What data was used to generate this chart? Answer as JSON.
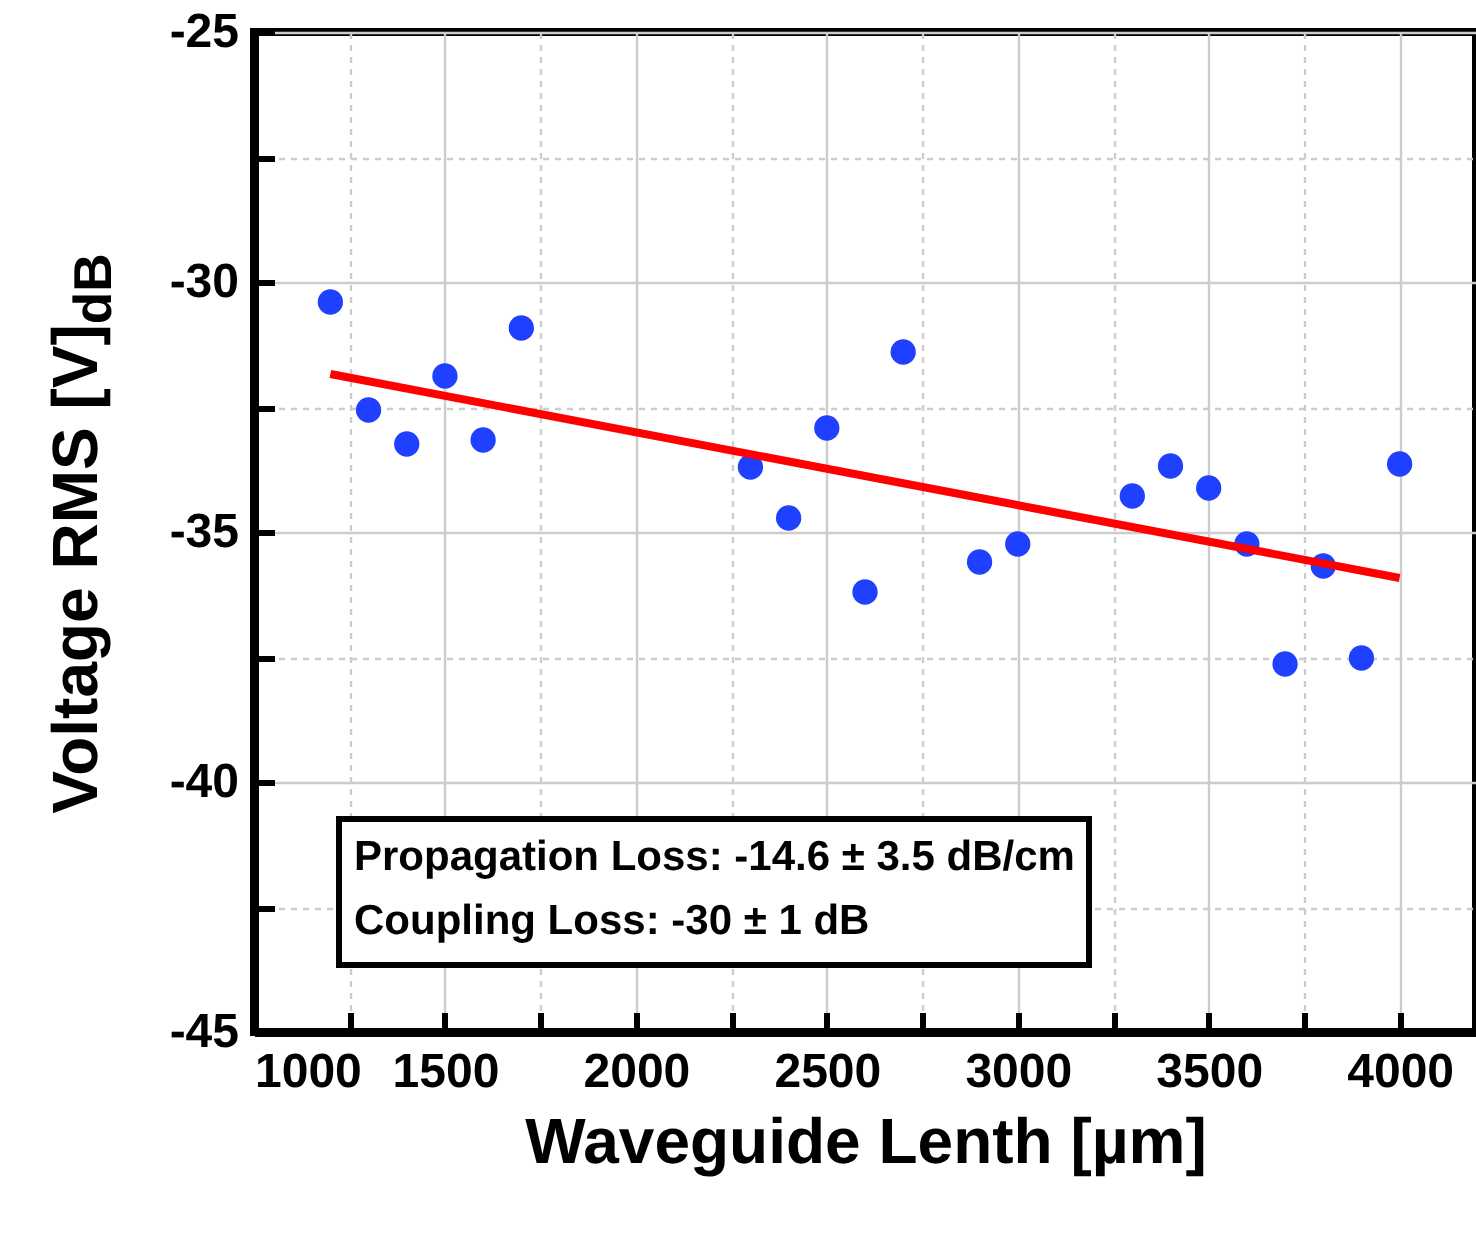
{
  "chart_data": {
    "type": "scatter",
    "xlabel": "Waveguide Lenth [µm]",
    "ylabel": "Voltage RMS [V]$_{dB}$",
    "annotations": [
      "Propagation Loss: -14.6 ± 3.5 dB/cm",
      "Coupling Loss: -30 ± 1 dB"
    ],
    "x": [
      1200,
      1300,
      1400,
      1500,
      1600,
      1700,
      2300,
      2400,
      2500,
      2600,
      2700,
      2900,
      3000,
      3300,
      3400,
      3500,
      3600,
      3700,
      3800,
      3900,
      4000
    ],
    "series": [
      {
        "color": "#2040ff",
        "values": [
          -30.4,
          -32.56,
          -33.24,
          -31.88,
          -33.16,
          -30.92,
          -33.7,
          -34.72,
          -32.92,
          -36.2,
          -31.4,
          -35.6,
          -35.24,
          -34.28,
          -33.68,
          -34.12,
          -35.24,
          -37.64,
          -35.68,
          -37.52,
          -33.64
        ]
      },
      {
        "type": "line",
        "color": "#ff0000",
        "x": [
          1200,
          4000
        ],
        "values": [
          -31.84,
          -35.92
        ]
      }
    ],
    "xlim": [
      1000,
      4200
    ],
    "ylim": [
      -45,
      -25
    ],
    "xticks": [
      1000,
      {
        "value": 1250,
        "label": null
      },
      1500,
      {
        "value": 1750,
        "label": null
      },
      2000,
      {
        "value": 2250,
        "label": null
      },
      2500,
      {
        "value": 2750,
        "label": null
      },
      3000,
      {
        "value": 3250,
        "label": null
      },
      3500,
      {
        "value": 3750,
        "label": null
      },
      4000
    ],
    "yticks": [
      -45,
      {
        "value": -42.5,
        "label": null
      },
      -40,
      {
        "value": -37.5,
        "label": null
      },
      -35,
      {
        "value": -32.5,
        "label": null
      },
      -30,
      {
        "value": -27.5,
        "label": null
      },
      -25
    ],
    "grid": true,
    "line_style": "solid"
  }
}
